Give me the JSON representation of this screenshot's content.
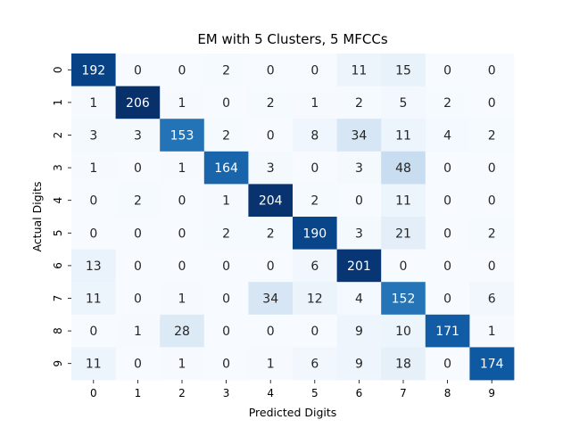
{
  "chart_data": {
    "type": "heatmap",
    "title": "EM with 5 Clusters, 5 MFCCs",
    "xlabel": "Predicted Digits",
    "ylabel": "Actual Digits",
    "x_categories": [
      "0",
      "1",
      "2",
      "3",
      "4",
      "5",
      "6",
      "7",
      "8",
      "9"
    ],
    "y_categories": [
      "0",
      "1",
      "2",
      "3",
      "4",
      "5",
      "6",
      "7",
      "8",
      "9"
    ],
    "values": [
      [
        192,
        0,
        0,
        2,
        0,
        0,
        11,
        15,
        0,
        0
      ],
      [
        1,
        206,
        1,
        0,
        2,
        1,
        2,
        5,
        2,
        0
      ],
      [
        3,
        3,
        153,
        2,
        0,
        8,
        34,
        11,
        4,
        2
      ],
      [
        1,
        0,
        1,
        164,
        3,
        0,
        3,
        48,
        0,
        0
      ],
      [
        0,
        2,
        0,
        1,
        204,
        2,
        0,
        11,
        0,
        0
      ],
      [
        0,
        0,
        0,
        2,
        2,
        190,
        3,
        21,
        0,
        2
      ],
      [
        13,
        0,
        0,
        0,
        0,
        6,
        201,
        0,
        0,
        0
      ],
      [
        11,
        0,
        1,
        0,
        34,
        12,
        4,
        152,
        0,
        6
      ],
      [
        0,
        1,
        28,
        0,
        0,
        0,
        9,
        10,
        171,
        1
      ],
      [
        11,
        0,
        1,
        0,
        1,
        6,
        9,
        18,
        0,
        174
      ]
    ],
    "colormap": "Blues",
    "color_range": [
      0,
      206
    ],
    "colorbar": false,
    "grid": false
  }
}
